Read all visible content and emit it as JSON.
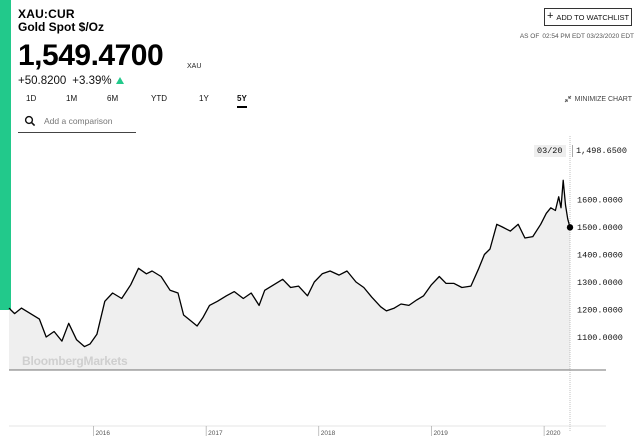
{
  "header": {
    "ticker": "XAU:CUR",
    "name": "Gold Spot $/Oz",
    "watchlist_label": "ADD TO WATCHLIST",
    "as_of_label": "AS OF",
    "as_of_value": "02:54 PM EDT 03/23/2020 EDT",
    "price": "1,549.4700",
    "currency": "XAU",
    "change": "+50.8200",
    "change_pct": "+3.39%"
  },
  "tabs": [
    "1D",
    "1M",
    "6M",
    "YTD",
    "1Y",
    "5Y"
  ],
  "active_tab": "5Y",
  "minimize_label": "MINIMIZE CHART",
  "comparison": {
    "placeholder": "Add a comparison"
  },
  "tooltip": {
    "date": "03/20",
    "value": "1,498.6500"
  },
  "brand": "BloombergMarkets",
  "colors": {
    "accent": "#22c98b",
    "area": "#efefef",
    "line": "#000000"
  },
  "chart_data": {
    "type": "area",
    "title": "",
    "xlabel": "",
    "ylabel": "",
    "y_tick_labels": [
      "1600.0000",
      "1500.0000",
      "1400.0000",
      "1300.0000",
      "1200.0000",
      "1100.0000"
    ],
    "y_ticks": [
      1600,
      1500,
      1400,
      1300,
      1200,
      1100
    ],
    "ylim": [
      990,
      1760
    ],
    "xlim": [
      2015.25,
      2020.23
    ],
    "x_tick_labels": [
      "2016",
      "2017",
      "2018",
      "2019",
      "2020"
    ],
    "x_ticks": [
      2016,
      2017,
      2018,
      2019,
      2020
    ],
    "grid": false,
    "series": [
      {
        "x": [
          2015.25,
          2015.3,
          2015.36,
          2015.44,
          2015.52,
          2015.58,
          2015.65,
          2015.72,
          2015.78,
          2015.85,
          2015.92,
          2015.97,
          2016.03,
          2016.1,
          2016.17,
          2016.25,
          2016.33,
          2016.4,
          2016.47,
          2016.52,
          2016.6,
          2016.68,
          2016.75,
          2016.8,
          2016.86,
          2016.92,
          2016.97,
          2017.03,
          2017.1,
          2017.18,
          2017.25,
          2017.33,
          2017.4,
          2017.47,
          2017.52,
          2017.6,
          2017.68,
          2017.75,
          2017.82,
          2017.9,
          2017.96,
          2018.03,
          2018.1,
          2018.18,
          2018.25,
          2018.33,
          2018.4,
          2018.47,
          2018.55,
          2018.6,
          2018.67,
          2018.73,
          2018.8,
          2018.87,
          2018.93,
          2019.0,
          2019.07,
          2019.13,
          2019.2,
          2019.27,
          2019.35,
          2019.42,
          2019.47,
          2019.52,
          2019.58,
          2019.63,
          2019.7,
          2019.77,
          2019.83,
          2019.9,
          2019.97,
          2020.02,
          2020.06,
          2020.1,
          2020.13,
          2020.15,
          2020.17,
          2020.19,
          2020.21,
          2020.23
        ],
        "y": [
          1205,
          1185,
          1205,
          1185,
          1165,
          1100,
          1120,
          1085,
          1150,
          1090,
          1065,
          1075,
          1110,
          1230,
          1260,
          1240,
          1290,
          1350,
          1330,
          1340,
          1320,
          1270,
          1260,
          1180,
          1160,
          1140,
          1170,
          1215,
          1230,
          1250,
          1265,
          1240,
          1260,
          1215,
          1270,
          1290,
          1310,
          1280,
          1285,
          1250,
          1300,
          1330,
          1340,
          1325,
          1340,
          1300,
          1280,
          1245,
          1210,
          1195,
          1205,
          1220,
          1215,
          1235,
          1250,
          1290,
          1320,
          1295,
          1295,
          1280,
          1285,
          1350,
          1400,
          1420,
          1510,
          1500,
          1485,
          1510,
          1460,
          1465,
          1510,
          1550,
          1570,
          1560,
          1610,
          1570,
          1670,
          1580,
          1530,
          1498.65
        ]
      }
    ]
  }
}
